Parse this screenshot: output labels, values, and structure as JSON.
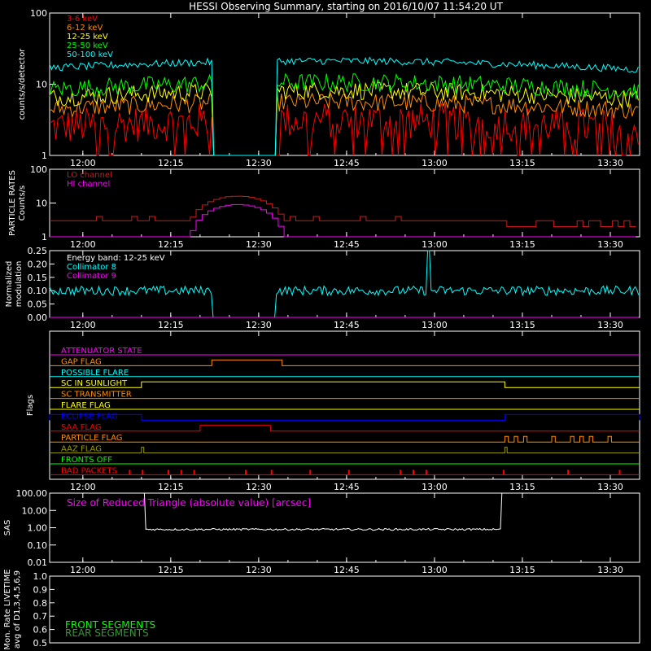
{
  "title": "HESSI Observing Summary, starting on 2016/10/07 11:54:20 UT",
  "time_ticks": [
    "12:00",
    "12:15",
    "12:30",
    "12:45",
    "13:00",
    "13:15",
    "13:30"
  ],
  "colors": {
    "background": "#000000",
    "axes": "#ffffff",
    "red": "#ff0000",
    "orange": "#ff8c00",
    "yellow": "#ffff00",
    "green": "#00ff00",
    "cyan": "#00ffff",
    "magenta": "#ff00ff",
    "crimson": "#cc1a1a",
    "blue": "#0000ff",
    "olive": "#999900",
    "dark_green": "#339933"
  },
  "chart_data": [
    {
      "id": "count-rates",
      "type": "line",
      "ylabel": "counts/s/detector",
      "yscale": "log",
      "ylim": [
        1,
        100
      ],
      "ytick_labels": [
        "1",
        "10",
        "100"
      ],
      "series": [
        {
          "name": "3-6 keV",
          "level": 2.5,
          "color": "#ff0000"
        },
        {
          "name": "6-12 keV",
          "level": 4.5,
          "color": "#ff8c00"
        },
        {
          "name": "12-25 keV",
          "level": 6.5,
          "color": "#ffff00"
        },
        {
          "name": "25-50 keV",
          "level": 8.5,
          "color": "#00ff00"
        },
        {
          "name": "50-100 keV",
          "level": 17,
          "color": "#00ffff"
        }
      ],
      "data_gap": [
        "12:22",
        "12:33"
      ]
    },
    {
      "id": "particle-rates",
      "type": "line",
      "ylabel_lines": [
        "PARTICLE RATES",
        "Counts/s"
      ],
      "yscale": "log",
      "ylim": [
        1,
        100
      ],
      "ytick_labels": [
        "1",
        "10",
        "100"
      ],
      "series": [
        {
          "name": "LO channel",
          "color": "#cc1a1a",
          "baseline": 3,
          "peak": 16,
          "peak_time": "12:26"
        },
        {
          "name": "HI channel",
          "color": "#ff00ff",
          "baseline": 1,
          "peak": 9,
          "peak_time": "12:26"
        }
      ]
    },
    {
      "id": "modulation",
      "type": "line",
      "ylabel_lines": [
        "Normalized",
        "modulation"
      ],
      "ylim": [
        0,
        0.25
      ],
      "ytick_labels": [
        "0.00",
        "0.05",
        "0.10",
        "0.15",
        "0.20",
        "0.25"
      ],
      "annotation": "Energy band: 12-25 keV",
      "series": [
        {
          "name": "Collimator 8",
          "color": "#00ffff",
          "level": 0.1
        },
        {
          "name": "Collimator 9",
          "color": "#ff00ff",
          "level": 0.0
        }
      ],
      "data_gap": [
        "12:22",
        "12:33"
      ],
      "spike": {
        "time": "12:59",
        "value": 0.25
      }
    },
    {
      "id": "flags",
      "type": "line",
      "ylabel": "Flags",
      "flags": [
        {
          "name": "ATTENUATOR STATE",
          "color": "#ff00ff"
        },
        {
          "name": "GAP FLAG",
          "color": "#ff8c00",
          "on": [
            [
              "12:22",
              "12:34"
            ]
          ]
        },
        {
          "name": "POSSIBLE FLARE",
          "color": "#00ffff"
        },
        {
          "name": "SC IN SUNLIGHT",
          "color": "#ffff00",
          "on": [
            [
              "12:10",
              "13:12"
            ]
          ]
        },
        {
          "name": "SC TRANSMITTER",
          "color": "#ff8c00"
        },
        {
          "name": "FLARE FLAG",
          "color": "#ffff00"
        },
        {
          "name": "ECLIPSE FLAG",
          "color": "#0000ff",
          "on": [
            [
              "11:54",
              "12:10"
            ],
            [
              "13:12",
              "13:35"
            ]
          ]
        },
        {
          "name": "SAA FLAG",
          "color": "#ff0000",
          "on": [
            [
              "12:20",
              "12:32"
            ]
          ]
        },
        {
          "name": "PARTICLE FLAG",
          "color": "#ff8c00"
        },
        {
          "name": "AAZ FLAG",
          "color": "#999900"
        },
        {
          "name": "FRONTS OFF",
          "color": "#00ff00"
        },
        {
          "name": "BAD PACKETS",
          "color": "#ff0000"
        }
      ]
    },
    {
      "id": "sas",
      "type": "line",
      "ylabel": "SAS",
      "yscale": "log",
      "ylim": [
        0.01,
        100
      ],
      "ytick_labels": [
        "0.01",
        "0.10",
        "1.00",
        "10.00",
        "100.00"
      ],
      "annotation": "Size of Reduced Triangle (absolute value) [arcsec]",
      "series": [
        {
          "name": "",
          "color": "#ffffff",
          "level": 0.8,
          "start": "12:10",
          "end": "13:12"
        }
      ]
    },
    {
      "id": "livetime",
      "type": "line",
      "ylabel_lines": [
        "Mon. Rate LIVETIME",
        "avg of D1,3,4,5,6,9"
      ],
      "ylim": [
        0.5,
        1.0
      ],
      "ytick_labels": [
        "0.5",
        "0.6",
        "0.7",
        "0.8",
        "0.9",
        "1.0"
      ],
      "series": [
        {
          "name": "FRONT SEGMENTS",
          "color": "#00ff00"
        },
        {
          "name": "REAR SEGMENTS",
          "color": "#339933"
        }
      ]
    }
  ]
}
